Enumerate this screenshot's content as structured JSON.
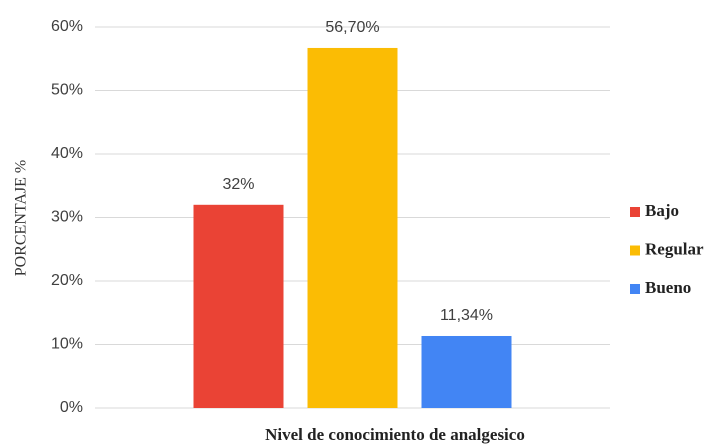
{
  "chart_data": {
    "type": "bar",
    "x_label": "Nivel de conocimiento de analgesico",
    "y_label": "PORCENTAJE %",
    "categories": [
      null
    ],
    "series": [
      {
        "name": "Bajo",
        "color": "#ea4335",
        "values": [
          32
        ],
        "value_labels": [
          "32%"
        ]
      },
      {
        "name": "Regular",
        "color": "#fbbc04",
        "values": [
          56.7
        ],
        "value_labels": [
          "56,70%"
        ]
      },
      {
        "name": "Bueno",
        "color": "#4285f4",
        "values": [
          11.34
        ],
        "value_labels": [
          "11,34%"
        ]
      }
    ],
    "ylim": [
      0,
      60
    ],
    "yticks": [
      {
        "value": 0,
        "label": "0%"
      },
      {
        "value": 10,
        "label": "10%"
      },
      {
        "value": 20,
        "label": "20%"
      },
      {
        "value": 30,
        "label": "30%"
      },
      {
        "value": 40,
        "label": "40%"
      },
      {
        "value": 50,
        "label": "50%"
      },
      {
        "value": 60,
        "label": "60%"
      }
    ],
    "grid": true,
    "legend": "right"
  }
}
